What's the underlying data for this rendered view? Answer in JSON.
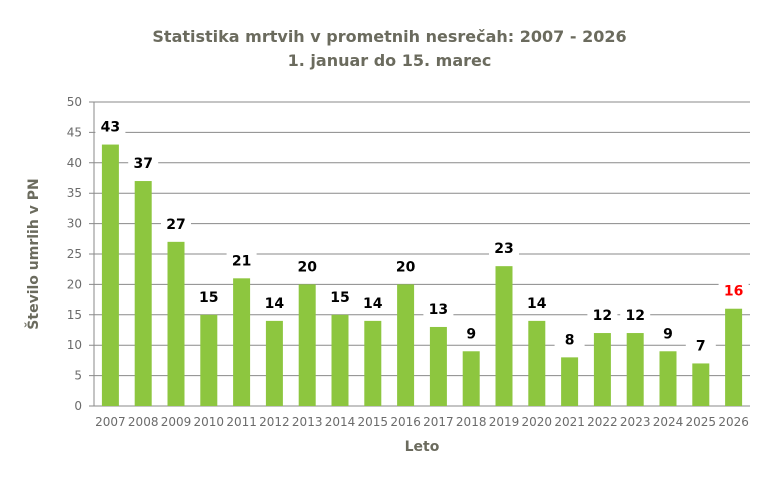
{
  "chart_data": {
    "type": "bar",
    "title": "Statistika mrtvih v prometnih nesrečah: 2007 - 2026",
    "subtitle": "1. januar do 15. marec",
    "xlabel": "Leto",
    "ylabel": "Število umrlih v PN",
    "ylim": [
      0,
      50
    ],
    "yticks": [
      0,
      5,
      10,
      15,
      20,
      25,
      30,
      35,
      40,
      45,
      50
    ],
    "grid": true,
    "categories": [
      "2007",
      "2008",
      "2009",
      "2010",
      "2011",
      "2012",
      "2013",
      "2014",
      "2015",
      "2016",
      "2017",
      "2018",
      "2019",
      "2020",
      "2021",
      "2022",
      "2023",
      "2024",
      "2025",
      "2026"
    ],
    "values": [
      43,
      37,
      27,
      15,
      21,
      14,
      20,
      15,
      14,
      20,
      13,
      9,
      23,
      14,
      8,
      12,
      12,
      9,
      7,
      16
    ],
    "colors": {
      "bar": "#8dc63f",
      "label": "#000000",
      "highlight_label": "#ff0000",
      "title": "#6b6b5e",
      "grid": "#8a8a8a",
      "axis_text": "#6b6b6b"
    },
    "highlight_category": "2026"
  }
}
